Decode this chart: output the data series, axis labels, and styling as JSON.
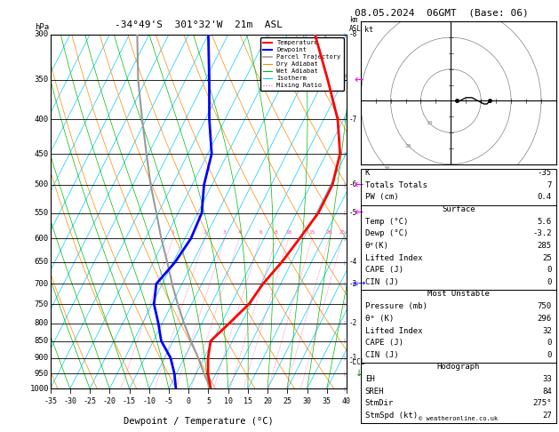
{
  "title_left": "-34°49'S  301°32'W  21m  ASL",
  "title_right": "08.05.2024  06GMT  (Base: 06)",
  "xlabel": "Dewpoint / Temperature (°C)",
  "pressure_levels": [
    300,
    350,
    400,
    450,
    500,
    550,
    600,
    650,
    700,
    750,
    800,
    850,
    900,
    950,
    1000
  ],
  "xlim": [
    -35,
    40
  ],
  "pmin": 300,
  "pmax": 1000,
  "skew": 45.0,
  "isotherm_color": "#00ccff",
  "dry_adiabat_color": "#ff8800",
  "wet_adiabat_color": "#00bb00",
  "mixing_ratio_color": "#ff44aa",
  "temp_color": "#ff0000",
  "dewp_color": "#0000ff",
  "parcel_color": "#999999",
  "temp_profile": {
    "pressure": [
      1000,
      950,
      900,
      850,
      800,
      750,
      700,
      650,
      600,
      550,
      500,
      450,
      400,
      350,
      300
    ],
    "temp": [
      5.6,
      3.0,
      1.0,
      -0.5,
      2.0,
      4.5,
      5.5,
      7.5,
      9.0,
      10.5,
      10.5,
      8.5,
      3.5,
      -4.0,
      -13.0
    ]
  },
  "dewp_profile": {
    "pressure": [
      1000,
      950,
      900,
      850,
      800,
      750,
      700,
      650,
      600,
      550,
      500,
      450,
      400,
      350,
      300
    ],
    "temp": [
      -3.2,
      -5.5,
      -8.5,
      -13.0,
      -16.0,
      -19.5,
      -21.5,
      -19.5,
      -18.5,
      -19.0,
      -22.0,
      -24.0,
      -29.0,
      -34.0,
      -40.0
    ]
  },
  "parcel_profile": {
    "pressure": [
      1000,
      950,
      900,
      850,
      800,
      750,
      700,
      650,
      600,
      550,
      500,
      450,
      400,
      350,
      300
    ],
    "temp": [
      5.6,
      2.0,
      -1.5,
      -5.5,
      -9.5,
      -13.5,
      -17.5,
      -21.5,
      -26.0,
      -30.5,
      -35.5,
      -40.5,
      -46.0,
      -52.0,
      -58.0
    ]
  },
  "mixing_ratio_values": [
    1,
    2,
    3,
    4,
    6,
    8,
    10,
    15,
    20,
    25
  ],
  "km_labels": [
    [
      300,
      "8"
    ],
    [
      400,
      "7"
    ],
    [
      500,
      "6"
    ],
    [
      550,
      "5"
    ],
    [
      650,
      "4"
    ],
    [
      700,
      "3"
    ],
    [
      800,
      "2"
    ],
    [
      900,
      "1"
    ]
  ],
  "lcl_pressure": 900,
  "hodo_u": [
    2,
    3,
    5,
    7,
    9,
    11,
    12,
    13
  ],
  "hodo_v": [
    0,
    0,
    1,
    1,
    0,
    -1,
    -1,
    0
  ],
  "info": {
    "K": "-35",
    "Totals Totals": "7",
    "PW (cm)": "0.4",
    "surf_temp": "5.6",
    "surf_dewp": "-3.2",
    "surf_theta": "285",
    "surf_li": "25",
    "surf_cape": "0",
    "surf_cin": "0",
    "mu_pres": "750",
    "mu_theta": "296",
    "mu_li": "32",
    "mu_cape": "0",
    "mu_cin": "0",
    "hodo_eh": "33",
    "hodo_sreh": "84",
    "hodo_stmdir": "275°",
    "hodo_stmspd": "27"
  }
}
